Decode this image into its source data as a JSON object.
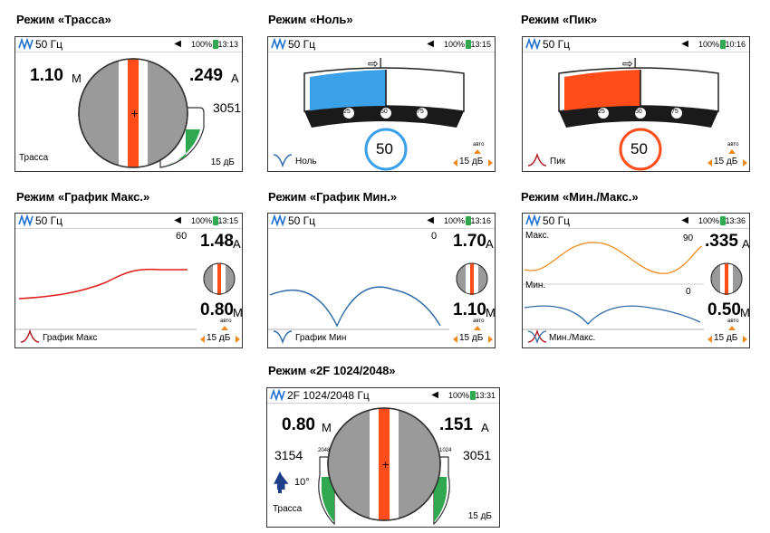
{
  "captions": {
    "trassa": "Режим «Трасса»",
    "nol": "Режим «Ноль»",
    "pik": "Режим «Пик»",
    "grafik_max": "Режим «График Макс.»",
    "grafik_min": "Режим «График Мин.»",
    "min_max": "Режим «Мин./Макс.»",
    "dual": "Режим «2F 1024/2048»"
  },
  "battery": "100%",
  "colors": {
    "accent": "#ff4d1a",
    "blue": "#3aa0e8",
    "green": "#2fa84f",
    "line_red": "#e21b1b",
    "line_blue": "#2e6aa8",
    "orange": "#f08a1c"
  },
  "trassa": {
    "mode": "50 Гц",
    "time": "13:13",
    "depth": "1.10",
    "depth_unit": "М",
    "current": ".249",
    "current_unit": "А",
    "signal": "3051",
    "label": "Трасса",
    "gain": "15 дБ",
    "icon": "peak-wave-icon"
  },
  "nol": {
    "mode": "50 Гц",
    "time": "13:15",
    "ticks": [
      "25",
      "50",
      "75"
    ],
    "value": "50",
    "label": "Ноль",
    "auto": "авто",
    "gain": "15 дБ"
  },
  "pik": {
    "mode": "50 Гц",
    "time": "10:16",
    "ticks": [
      "25",
      "50",
      "75"
    ],
    "value": "50",
    "label": "Пик",
    "auto": "авто",
    "gain": "15 дБ"
  },
  "grafik_max": {
    "mode": "50 Гц",
    "time": "13:15",
    "scale": "60",
    "current": "1.48",
    "current_unit": "А",
    "depth": "0.80",
    "depth_unit": "М",
    "label": "График Макс",
    "auto": "авто",
    "gain": "15 дБ"
  },
  "grafik_min": {
    "mode": "50 Гц",
    "time": "13:16",
    "scale": "0",
    "current": "1.70",
    "current_unit": "А",
    "depth": "1.10",
    "depth_unit": "М",
    "label": "График Мин",
    "auto": "авто",
    "gain": "15 дБ"
  },
  "min_max": {
    "mode": "50 Гц",
    "time": "13:36",
    "max_label": "Макс.",
    "max_scale": "90",
    "min_label": "Мин.",
    "min_scale": "0",
    "current": ".335",
    "current_unit": "А",
    "depth": "0.50",
    "depth_unit": "М",
    "label": "Мин./Макс.",
    "auto": "авто",
    "gain": "15 дБ"
  },
  "dual": {
    "mode": "2F 1024/2048 Гц",
    "time": "13:31",
    "depth": "0.80",
    "depth_unit": "М",
    "current": ".151",
    "current_unit": "А",
    "left_signal": "3154",
    "right_signal": "3051",
    "left_freq": "2048",
    "right_freq": "1024",
    "angle": "10°",
    "label": "Трасса",
    "gain": "15 дБ"
  }
}
